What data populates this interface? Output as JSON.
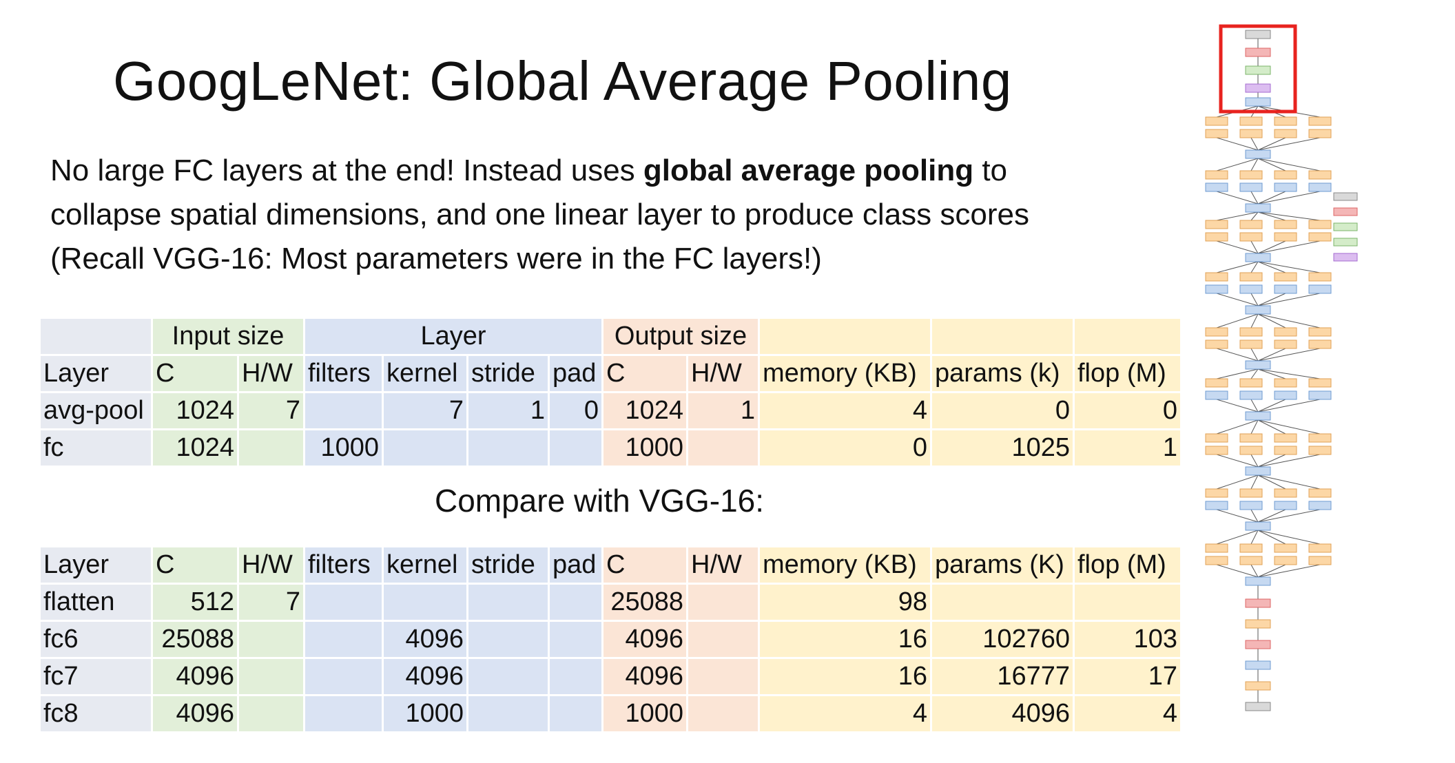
{
  "slide": {
    "title": "GoogLeNet: Global Average Pooling",
    "bullet_line1_pre": "No large FC layers at the end! Instead uses ",
    "bullet_line1_bold": "global average pooling",
    "bullet_line1_post": " to",
    "bullet_line2": "collapse spatial dimensions, and one linear layer to produce class scores",
    "bullet_line3": "(Recall VGG-16: Most parameters were in the FC layers!)",
    "compare_label": "Compare with VGG-16:"
  },
  "table1": {
    "groups": [
      "Input size",
      "Layer",
      "Output size"
    ],
    "headers": [
      "Layer",
      "C",
      "H/W",
      "filters",
      "kernel",
      "stride",
      "pad",
      "C",
      "H/W",
      "memory (KB)",
      "params (k)",
      "flop (M)"
    ],
    "rows": [
      [
        "avg-pool",
        "1024",
        "7",
        "",
        "7",
        "1",
        "0",
        "1024",
        "1",
        "4",
        "0",
        "0"
      ],
      [
        "fc",
        "1024",
        "",
        "1000",
        "",
        "",
        "",
        "1000",
        "",
        "0",
        "1025",
        "1"
      ]
    ]
  },
  "table2": {
    "headers": [
      "Layer",
      "C",
      "H/W",
      "filters",
      "kernel",
      "stride",
      "pad",
      "C",
      "H/W",
      "memory (KB)",
      "params (K)",
      "flop (M)"
    ],
    "rows": [
      [
        "flatten",
        "512",
        "7",
        "",
        "",
        "",
        "",
        "25088",
        "",
        "98",
        "",
        ""
      ],
      [
        "fc6",
        "25088",
        "",
        "",
        "4096",
        "",
        "",
        "4096",
        "",
        "16",
        "102760",
        "103"
      ],
      [
        "fc7",
        "4096",
        "",
        "",
        "4096",
        "",
        "",
        "4096",
        "",
        "16",
        "16777",
        "17"
      ],
      [
        "fc8",
        "4096",
        "",
        "",
        "1000",
        "",
        "",
        "1000",
        "",
        "4",
        "4096",
        "4"
      ]
    ]
  },
  "colors": {
    "label_col": "#e7eaf1",
    "input_group": "#e2efd9",
    "layer_group": "#dae3f3",
    "output_group": "#fbe5d6",
    "stats_group": "#fff2cc",
    "highlight_box": "#e8231f"
  },
  "icons": {
    "diagram": "googlenet-architecture-thumbnail"
  }
}
